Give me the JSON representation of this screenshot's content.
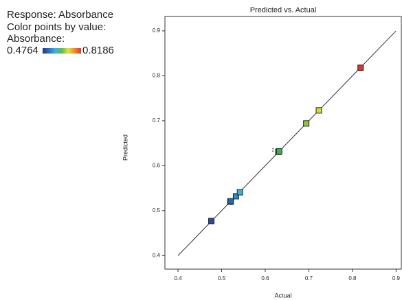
{
  "chart_data": {
    "type": "scatter",
    "title": "Predicted vs. Actual",
    "x_label": "Actual",
    "y_label": "Predicted",
    "legend_lines": [
      "Response: Absorbance",
      "Color points by value:",
      "Absorbance:"
    ],
    "color_min": 0.4764,
    "color_max": 0.8186,
    "color_min_color": "#2f55b5",
    "color_max_color": "#e8342a",
    "gradient": [
      "#24338f",
      "#2d6fc0",
      "#3ab3e3",
      "#57c14a",
      "#e6e03a",
      "#f08a2a",
      "#e8342a"
    ],
    "x": [
      0.4764,
      0.52,
      0.521,
      0.533,
      0.542,
      0.63,
      0.632,
      0.694,
      0.723,
      0.8186
    ],
    "y": [
      0.477,
      0.52,
      0.521,
      0.532,
      0.541,
      0.631,
      0.632,
      0.694,
      0.723,
      0.818
    ],
    "colors": [
      "#2a4a9c",
      "#2260ab",
      "#2468b2",
      "#2a8ccc",
      "#3aaee0",
      "#3aa84a",
      "#3db04a",
      "#8cc63f",
      "#d4dc2a",
      "#e0302a"
    ],
    "annotations": [
      {
        "text": "2",
        "x": 0.63,
        "y": 0.631
      }
    ],
    "fit_line": {
      "x": [
        0.4,
        0.9
      ],
      "y": [
        0.4,
        0.9
      ]
    },
    "xlim": [
      0.37,
      0.912
    ],
    "ylim": [
      0.37,
      0.932
    ],
    "xticks": [
      0.4,
      0.5,
      0.6,
      0.7,
      0.8,
      0.9
    ],
    "yticks": [
      0.4,
      0.5,
      0.6,
      0.7,
      0.8,
      0.9
    ]
  }
}
